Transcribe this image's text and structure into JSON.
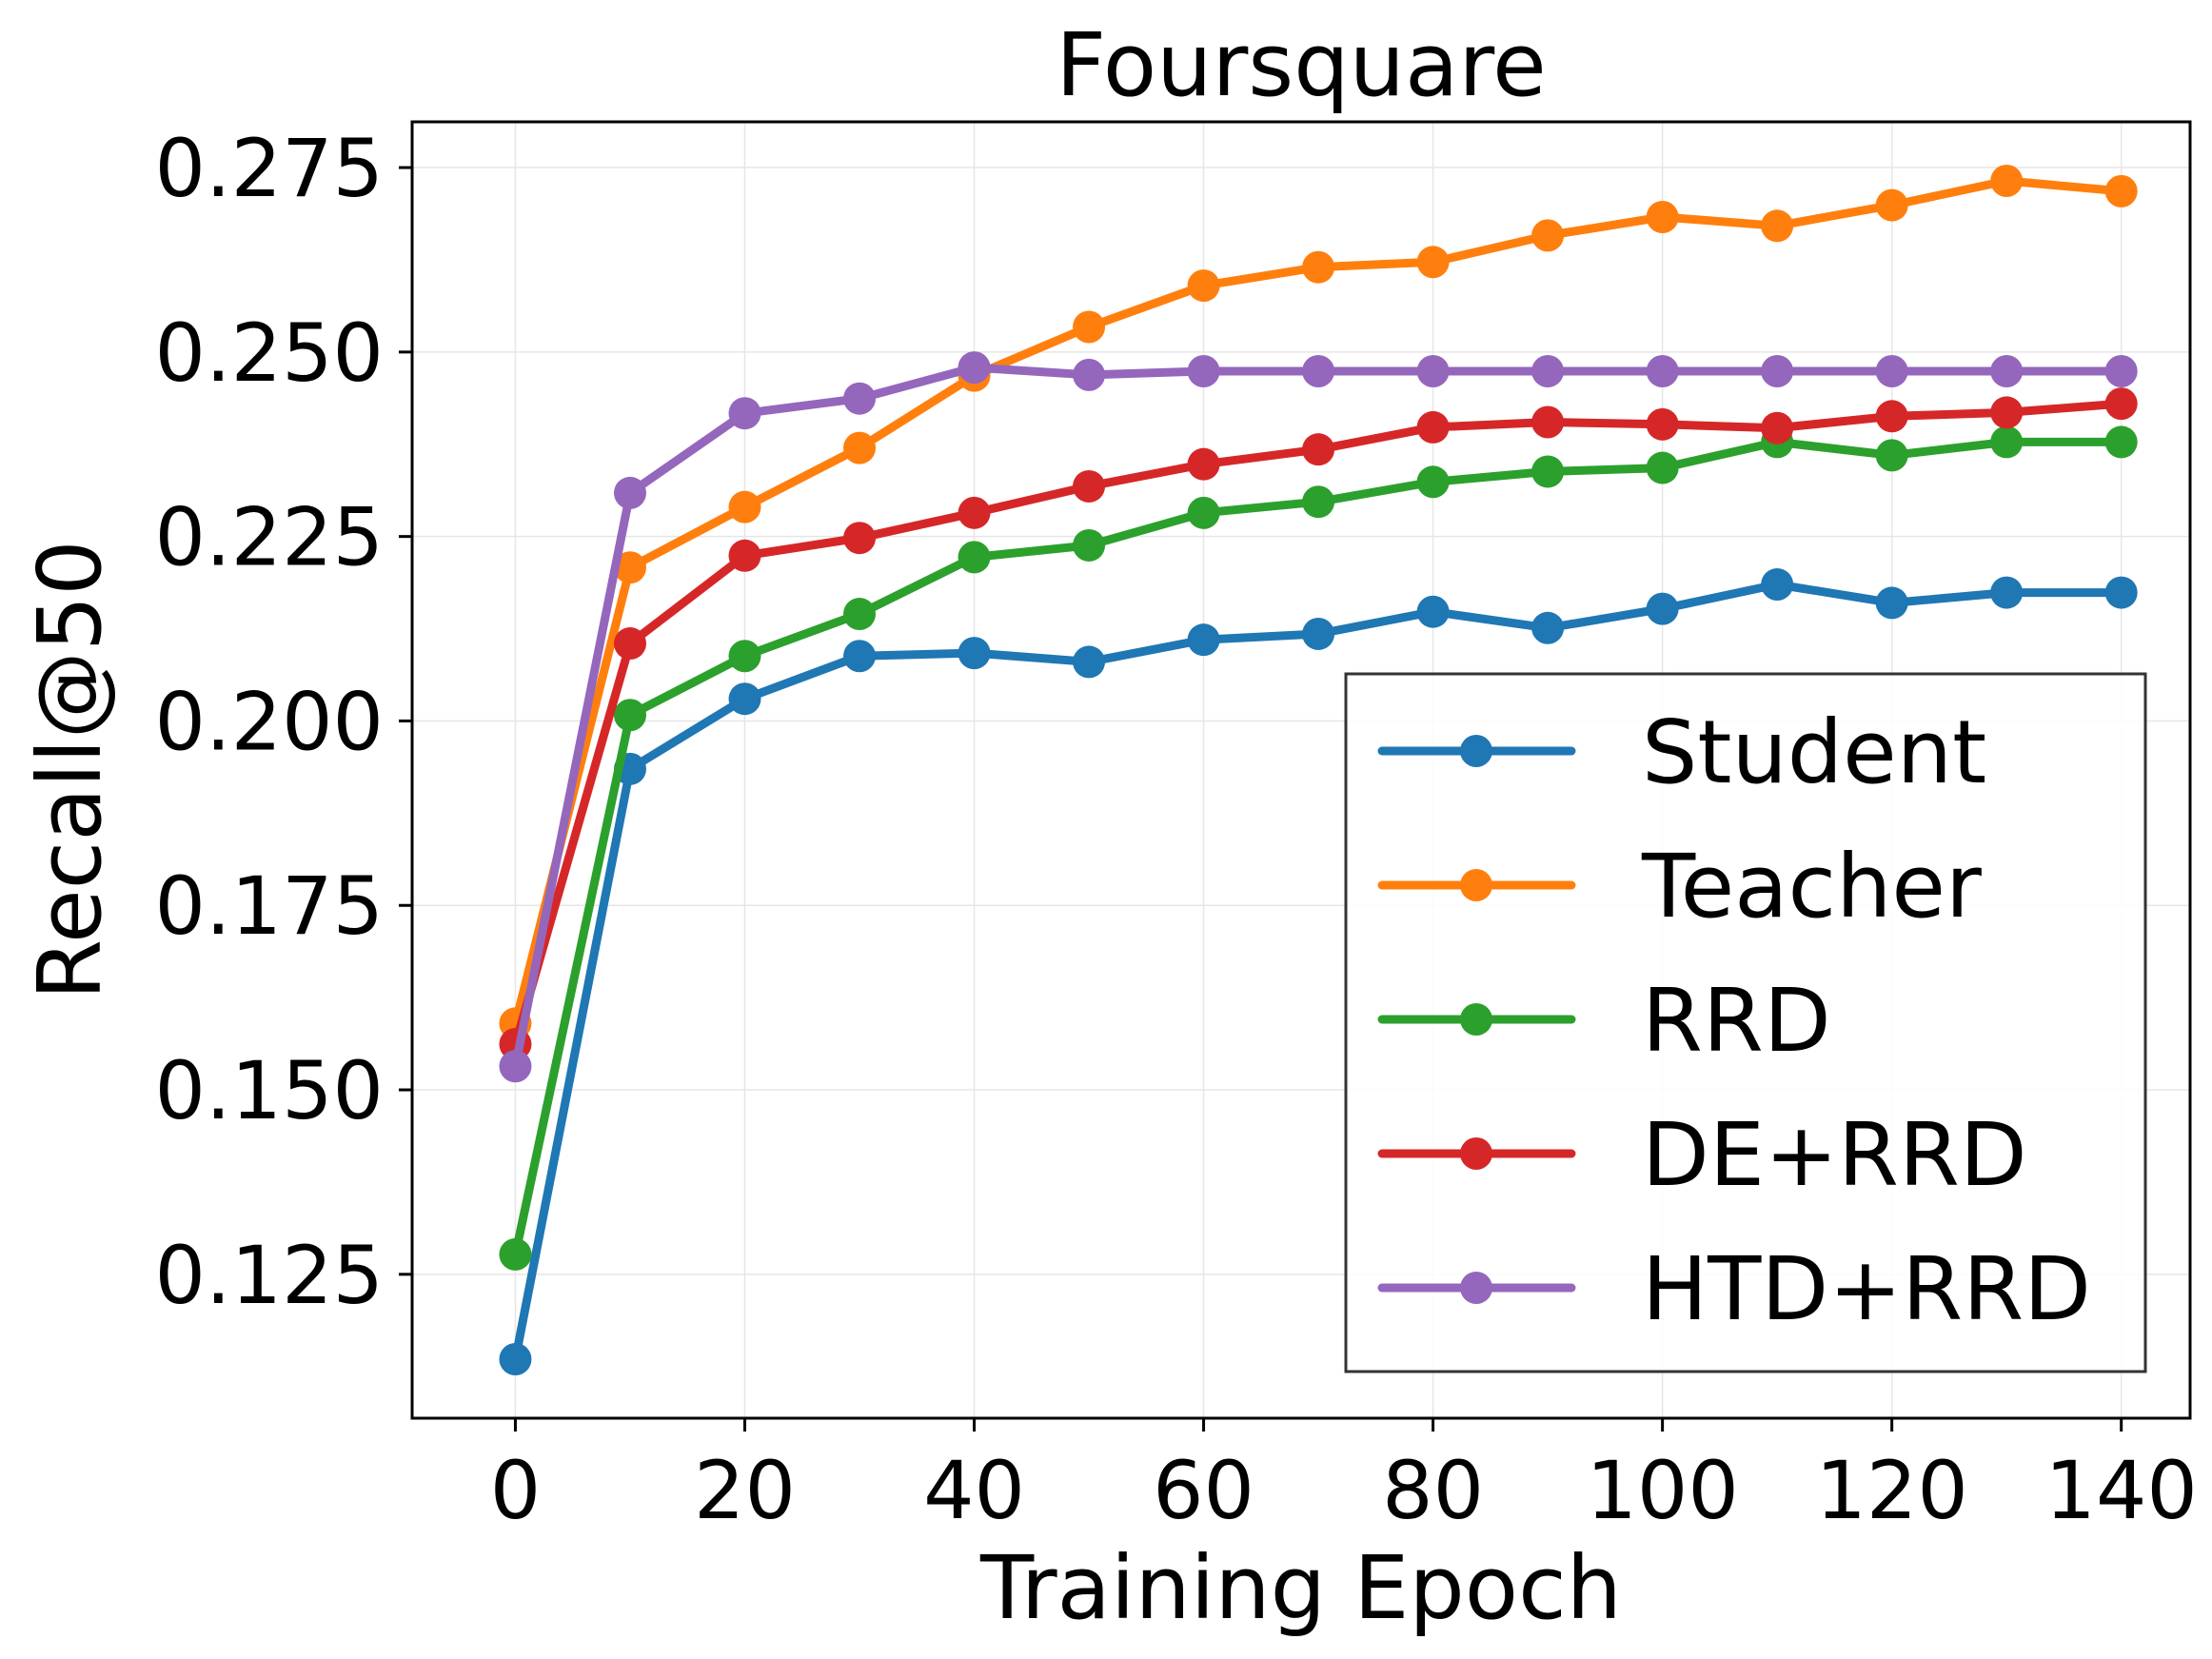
{
  "chart_data": {
    "type": "line",
    "title": "Foursquare",
    "xlabel": "Training Epoch",
    "ylabel": "Recall@50",
    "xlim": [
      -9,
      146
    ],
    "ylim": [
      0.1055,
      0.2812
    ],
    "xticks": [
      0,
      20,
      40,
      60,
      80,
      100,
      120,
      140
    ],
    "xtick_labels": [
      "0",
      "20",
      "40",
      "60",
      "80",
      "100",
      "120",
      "140"
    ],
    "yticks": [
      0.125,
      0.15,
      0.175,
      0.2,
      0.225,
      0.25,
      0.275
    ],
    "ytick_labels": [
      "0.125",
      "0.150",
      "0.175",
      "0.200",
      "0.225",
      "0.250",
      "0.275"
    ],
    "grid": true,
    "legend_position": "bottom-right",
    "x": [
      0,
      10,
      20,
      30,
      40,
      50,
      60,
      70,
      80,
      90,
      100,
      110,
      120,
      130,
      140
    ],
    "series": [
      {
        "name": "Student",
        "color": "#1f77b4",
        "values": [
          0.1135,
          0.1935,
          0.203,
          0.2088,
          0.2092,
          0.208,
          0.211,
          0.2118,
          0.2148,
          0.2126,
          0.2152,
          0.2185,
          0.216,
          0.2174,
          0.2174
        ]
      },
      {
        "name": "Teacher",
        "color": "#ff7f0e",
        "values": [
          0.159,
          0.2208,
          0.229,
          0.237,
          0.2468,
          0.2534,
          0.259,
          0.2615,
          0.2622,
          0.2658,
          0.2683,
          0.2671,
          0.2699,
          0.2732,
          0.2718
        ]
      },
      {
        "name": "RRD",
        "color": "#2ca02c",
        "values": [
          0.1277,
          0.2008,
          0.2088,
          0.2145,
          0.2222,
          0.2238,
          0.2282,
          0.2297,
          0.2324,
          0.2338,
          0.2343,
          0.2378,
          0.236,
          0.2378,
          0.2378
        ]
      },
      {
        "name": "DE+RRD",
        "color": "#d62728",
        "values": [
          0.1562,
          0.2105,
          0.2224,
          0.2248,
          0.2282,
          0.2318,
          0.2348,
          0.2368,
          0.2398,
          0.2405,
          0.2402,
          0.2397,
          0.2413,
          0.2418,
          0.243
        ]
      },
      {
        "name": "HTD+RRD",
        "color": "#9467bd",
        "values": [
          0.1532,
          0.2309,
          0.2417,
          0.2437,
          0.2479,
          0.2469,
          0.2474,
          0.2474,
          0.2474,
          0.2474,
          0.2474,
          0.2474,
          0.2474,
          0.2474,
          0.2474
        ]
      }
    ]
  }
}
